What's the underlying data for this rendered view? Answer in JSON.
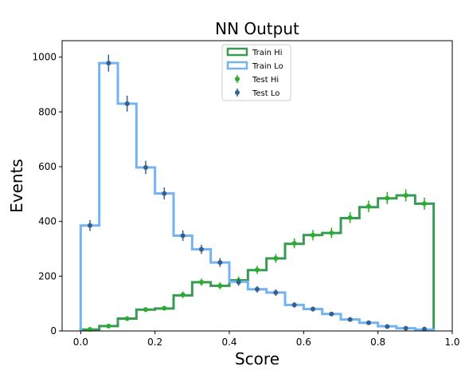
{
  "chart_data": {
    "type": "histogram",
    "title": "NN Output",
    "xlabel": "Score",
    "ylabel": "Events",
    "xlim": [
      -0.05,
      1.0
    ],
    "ylim": [
      0,
      1060
    ],
    "xticks": [
      "0.0",
      "0.2",
      "0.4",
      "0.6",
      "0.8",
      "1.0"
    ],
    "xtick_values": [
      0.0,
      0.2,
      0.4,
      0.6,
      0.8,
      1.0
    ],
    "yticks": [
      "0",
      "200",
      "400",
      "600",
      "800",
      "1000"
    ],
    "ytick_values": [
      0,
      200,
      400,
      600,
      800,
      1000
    ],
    "grid": false,
    "legend_position": "top-center",
    "bin_edges": [
      0.0,
      0.05,
      0.1,
      0.15,
      0.2,
      0.25,
      0.3,
      0.35,
      0.4,
      0.45,
      0.5,
      0.55,
      0.6,
      0.65,
      0.7,
      0.75,
      0.8,
      0.85,
      0.9,
      0.95
    ],
    "series": [
      {
        "name": "Train Hi",
        "kind": "step",
        "color": "#3a9a55",
        "values": [
          5,
          18,
          45,
          78,
          82,
          130,
          178,
          165,
          185,
          222,
          265,
          318,
          350,
          358,
          412,
          452,
          484,
          495,
          465
        ]
      },
      {
        "name": "Train Lo",
        "kind": "step",
        "color": "#72b3f2",
        "values": [
          385,
          978,
          830,
          597,
          502,
          348,
          298,
          250,
          180,
          152,
          140,
          95,
          80,
          62,
          42,
          30,
          17,
          10,
          5
        ]
      },
      {
        "name": "Test Hi",
        "kind": "errorbar",
        "color": "#27b027",
        "x": [
          0.025,
          0.075,
          0.125,
          0.175,
          0.225,
          0.275,
          0.325,
          0.375,
          0.425,
          0.475,
          0.525,
          0.575,
          0.625,
          0.675,
          0.725,
          0.775,
          0.825,
          0.875,
          0.925
        ],
        "values": [
          6,
          18,
          45,
          78,
          83,
          132,
          178,
          165,
          185,
          223,
          265,
          320,
          350,
          358,
          414,
          455,
          485,
          495,
          465
        ],
        "errors": [
          3,
          5,
          7,
          9,
          9,
          12,
          13,
          13,
          14,
          15,
          16,
          18,
          19,
          19,
          20,
          21,
          22,
          22,
          22
        ]
      },
      {
        "name": "Test Lo",
        "kind": "errorbar",
        "color": "#355f8d",
        "x": [
          0.025,
          0.075,
          0.125,
          0.175,
          0.225,
          0.275,
          0.325,
          0.375,
          0.425,
          0.475,
          0.525,
          0.575,
          0.625,
          0.675,
          0.725,
          0.775,
          0.825,
          0.875,
          0.925
        ],
        "values": [
          385,
          978,
          830,
          597,
          502,
          348,
          298,
          250,
          178,
          152,
          140,
          95,
          80,
          62,
          42,
          30,
          16,
          10,
          7
        ],
        "errors": [
          20,
          31,
          29,
          24,
          22,
          19,
          17,
          16,
          13,
          12,
          12,
          10,
          9,
          8,
          7,
          6,
          4,
          3,
          3
        ]
      }
    ]
  }
}
